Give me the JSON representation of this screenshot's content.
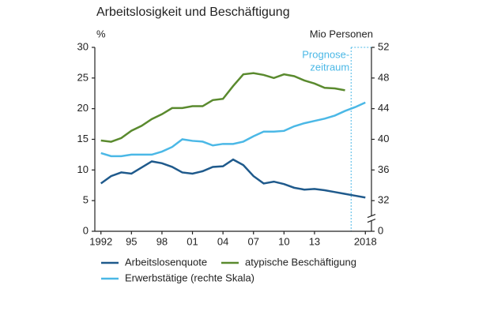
{
  "chart_data": {
    "type": "line",
    "title": "Arbeitslosigkeit und Beschäftigung",
    "y_label": "%",
    "y2_label": "Mio Personen",
    "x": [
      1992,
      1993,
      1994,
      1995,
      1996,
      1997,
      1998,
      1999,
      2000,
      2001,
      2002,
      2003,
      2004,
      2005,
      2006,
      2007,
      2008,
      2009,
      2010,
      2011,
      2012,
      2013,
      2014,
      2015,
      2016,
      2017,
      2018
    ],
    "xlim": [
      1991.4,
      2018.6
    ],
    "xticks": [
      {
        "value": 1992,
        "label": "1992"
      },
      {
        "value": 1995,
        "label": "95"
      },
      {
        "value": 1998,
        "label": "98"
      },
      {
        "value": 2001,
        "label": "01"
      },
      {
        "value": 2004,
        "label": "04"
      },
      {
        "value": 2007,
        "label": "07"
      },
      {
        "value": 2010,
        "label": "10"
      },
      {
        "value": 2013,
        "label": "13"
      },
      {
        "value": 2018,
        "label": "2018"
      }
    ],
    "ylim": [
      0,
      30
    ],
    "yticks": [
      0,
      5,
      10,
      15,
      20,
      25,
      30
    ],
    "y2lim": [
      28,
      52
    ],
    "y2ticks": [
      0,
      32,
      36,
      40,
      44,
      48,
      52
    ],
    "y2_axis_break": true,
    "forecast_start": 2016.6,
    "forecast_label": [
      "Prognose-",
      "zeitraum"
    ],
    "forecast_color": "#4bb8e6",
    "series": [
      {
        "name": "Arbeitslosenquote",
        "color": "#1f5a8c",
        "values": [
          7.8,
          9.0,
          9.6,
          9.4,
          10.4,
          11.4,
          11.1,
          10.5,
          9.6,
          9.4,
          9.8,
          10.5,
          10.6,
          11.7,
          10.8,
          9.0,
          7.8,
          8.1,
          7.7,
          7.1,
          6.8,
          6.9,
          6.7,
          6.4,
          6.1,
          5.8,
          5.5
        ]
      },
      {
        "name": "atypische Beschäftigung",
        "color": "#5a8a2e",
        "values": [
          14.8,
          14.6,
          15.2,
          16.4,
          17.2,
          18.3,
          19.1,
          20.1,
          20.1,
          20.4,
          20.4,
          21.4,
          21.6,
          23.7,
          25.6,
          25.8,
          25.5,
          25.0,
          25.6,
          25.3,
          24.6,
          24.1,
          23.4,
          23.3,
          23.0,
          null,
          null
        ]
      },
      {
        "name": "Erwerbstätige (rechte Skala)",
        "color": "#4bb8e6",
        "axis": "y2",
        "values": [
          38.2,
          37.8,
          37.8,
          38.0,
          38.0,
          38.0,
          38.4,
          39.0,
          40.0,
          39.8,
          39.7,
          39.2,
          39.4,
          39.4,
          39.7,
          40.4,
          41.0,
          41.0,
          41.1,
          41.7,
          42.1,
          42.4,
          42.7,
          43.1,
          43.7,
          44.2,
          44.8
        ]
      }
    ]
  }
}
